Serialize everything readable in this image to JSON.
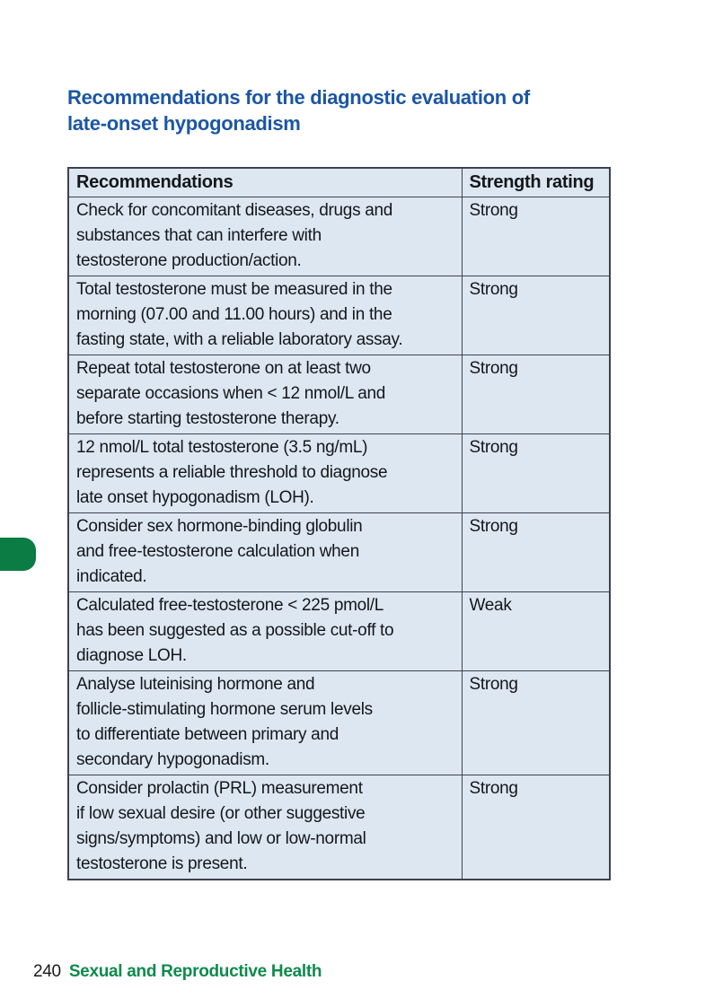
{
  "page": {
    "heading_lines": [
      "Recommendations for the diagnostic evaluation of",
      "late-onset hypogonadism"
    ],
    "footer": {
      "page_number": "240",
      "section_title": "Sexual and Reproductive Health"
    }
  },
  "table": {
    "headers": [
      "Recommendations",
      "Strength rating"
    ],
    "rows": [
      {
        "recommendation_lines": [
          "Check for concomitant diseases, drugs and",
          "substances that can interfere with",
          "testosterone production/action."
        ],
        "strength_rating": "Strong"
      },
      {
        "recommendation_lines": [
          "Total testosterone must be measured in the",
          "morning (07.00 and 11.00 hours) and in the",
          "fasting state, with a reliable laboratory assay."
        ],
        "strength_rating": "Strong"
      },
      {
        "recommendation_lines": [
          "Repeat total testosterone on at least two",
          "separate occasions when < 12 nmol/L and",
          "before starting testosterone therapy."
        ],
        "strength_rating": "Strong"
      },
      {
        "recommendation_lines": [
          "12 nmol/L total testosterone (3.5 ng/mL)",
          "represents a reliable threshold to diagnose",
          "late onset hypogonadism (LOH)."
        ],
        "strength_rating": "Strong"
      },
      {
        "recommendation_lines": [
          "Consider sex hormone-binding globulin",
          "and free-testosterone calculation when",
          "indicated."
        ],
        "strength_rating": "Strong"
      },
      {
        "recommendation_lines": [
          "Calculated free-testosterone < 225 pmol/L",
          "has been suggested as a possible cut-off to",
          "diagnose LOH."
        ],
        "strength_rating": "Weak"
      },
      {
        "recommendation_lines": [
          "Analyse luteinising hormone and",
          "follicle-stimulating hormone serum levels",
          "to differentiate between primary and",
          "secondary hypogonadism."
        ],
        "strength_rating": "Strong"
      },
      {
        "recommendation_lines": [
          "Consider prolactin (PRL) measurement",
          "if low sexual desire (or other suggestive",
          "signs/symptoms) and low or low-normal",
          "testosterone is present."
        ],
        "strength_rating": "Strong"
      }
    ]
  },
  "colors": {
    "heading_blue": "#1b56a3",
    "cell_bg": "#dde7f2",
    "border": "#3d434a",
    "text": "#14171b",
    "tab_green": "#0b7c43",
    "footer_green": "#0d8a4c",
    "page_number_color": "#1a1a1a"
  }
}
